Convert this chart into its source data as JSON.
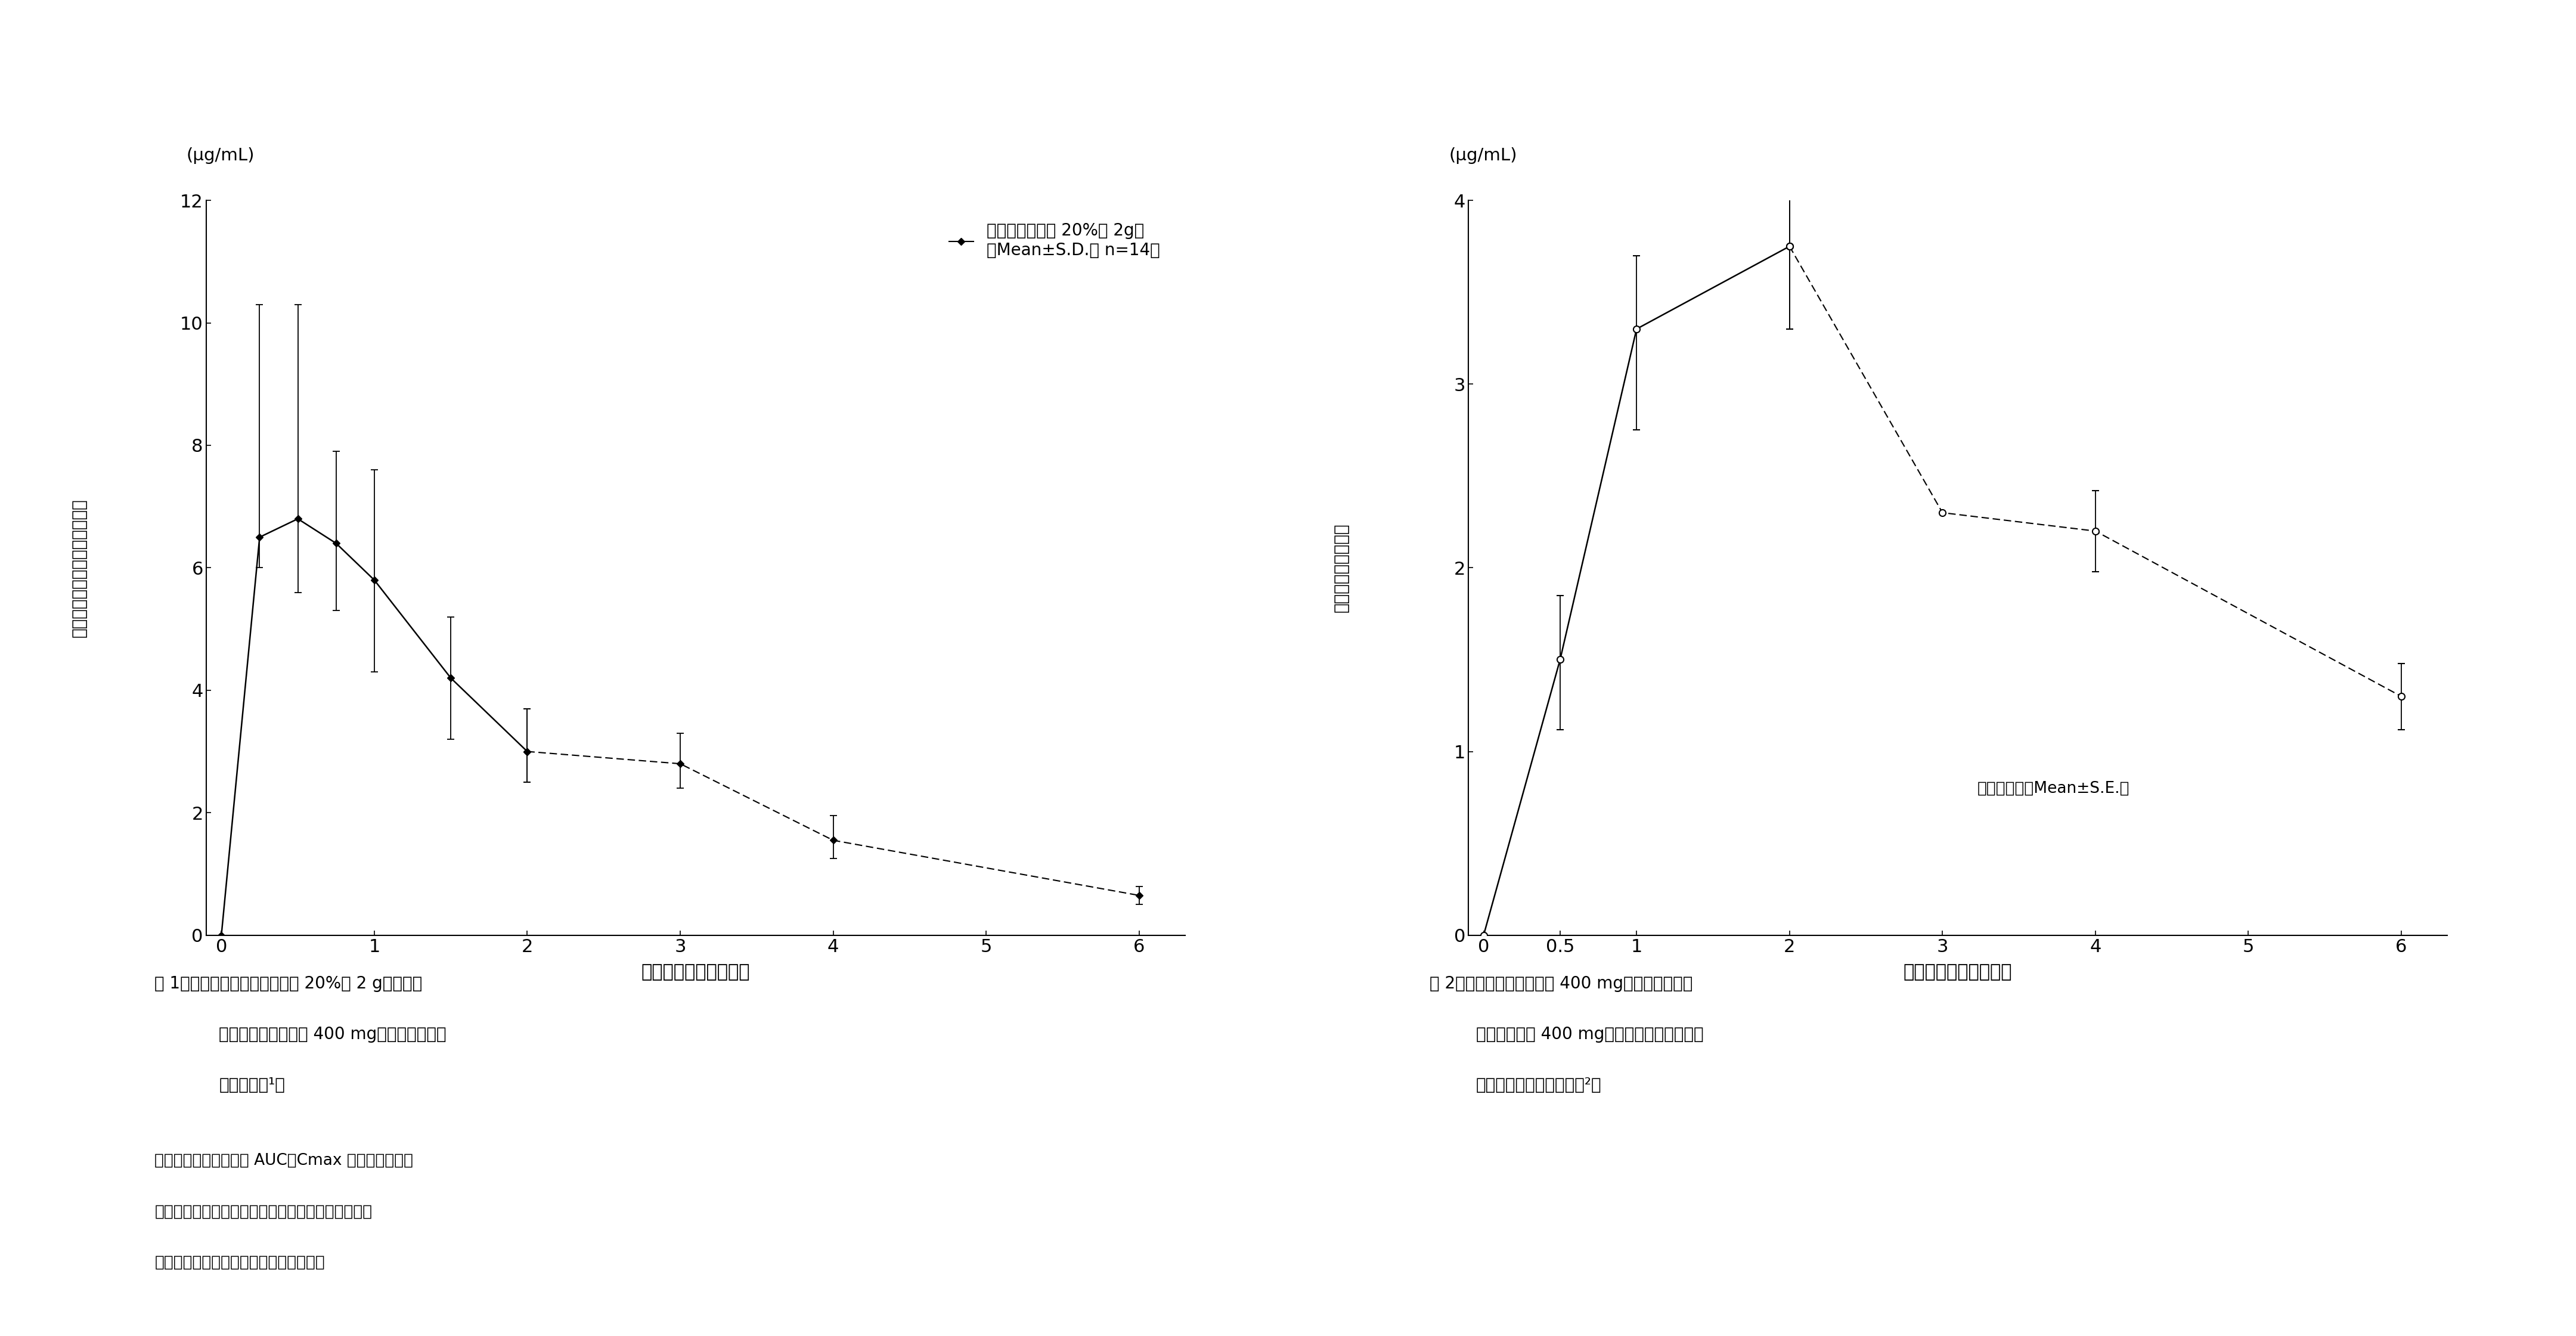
{
  "fig1": {
    "x": [
      0,
      0.25,
      0.5,
      0.75,
      1.0,
      1.5,
      2.0,
      3.0,
      4.0,
      6.0
    ],
    "y": [
      0.0,
      6.5,
      6.8,
      6.4,
      5.8,
      4.2,
      3.0,
      2.8,
      1.55,
      0.65
    ],
    "yerr_upper": [
      0.0,
      3.8,
      3.5,
      1.5,
      1.8,
      1.0,
      0.7,
      0.5,
      0.4,
      0.15
    ],
    "yerr_lower": [
      0.0,
      0.5,
      1.2,
      1.1,
      1.5,
      1.0,
      0.5,
      0.4,
      0.3,
      0.15
    ],
    "xlabel": "投与後の時間（時間）",
    "ylabel": "血浆中アセトアミノフェン濃度",
    "unit_label": "(μg/mL)",
    "ylim": [
      0,
      12
    ],
    "yticks": [
      0,
      2,
      4,
      6,
      8,
      10,
      12
    ],
    "xlim": [
      -0.1,
      6.3
    ],
    "xticks": [
      0,
      1,
      2,
      3,
      4,
      5,
      6
    ],
    "legend_label": "標準製剤（細粒 20%， 2g）\n（Mean±S.D.， n=14）",
    "caption_line1": "図 1　内服薬（カロナール顆粒 20%， 2 g；アセト",
    "caption_line2": "アミノフェンとして 400 mg）の薬物動態曲",
    "caption_line3": "線（成人）¹）",
    "footnote_line1": "　血浆中濃度ならびに AUC，Cmax などのパラメー",
    "footnote_line2": "タは，被験者の選択，体液の採取回数・時間などの",
    "footnote_line3": "試験条件によって異なる可能性がある。"
  },
  "fig2": {
    "x": [
      0,
      0.5,
      1.0,
      2.0,
      3.0,
      4.0,
      6.0
    ],
    "y": [
      0.0,
      1.5,
      3.3,
      3.75,
      2.3,
      2.2,
      1.3
    ],
    "yerr_upper": [
      0.0,
      0.35,
      0.4,
      0.45,
      0.0,
      0.22,
      0.18
    ],
    "yerr_lower": [
      0.0,
      0.38,
      0.55,
      0.45,
      0.0,
      0.22,
      0.18
    ],
    "xlabel": "投与後の時間（時間）",
    "ylabel": "血浆中未変化体濃度",
    "unit_label": "(μg/mL)",
    "ylim": [
      0,
      4
    ],
    "yticks": [
      0,
      1,
      2,
      3,
      4
    ],
    "xlim": [
      -0.1,
      6.3
    ],
    "xticks": [
      0,
      0.5,
      1,
      2,
      3,
      4,
      5,
      6
    ],
    "xticklabels": [
      "0",
      "0.5",
      "1",
      "2",
      "3",
      "4",
      "5",
      "6"
    ],
    "annotation": "（健康成人，Mean±S.E.）",
    "caption_line1": "図 2　坐剤（アンヒバ坐剤 400 mg；アセトアミノ",
    "caption_line2": "フェンとして 400 mg）直腸内単回投与した",
    "caption_line3": "ときの薬物動態（成人）²）"
  },
  "bg_color": "#ffffff",
  "text_color": "#000000"
}
